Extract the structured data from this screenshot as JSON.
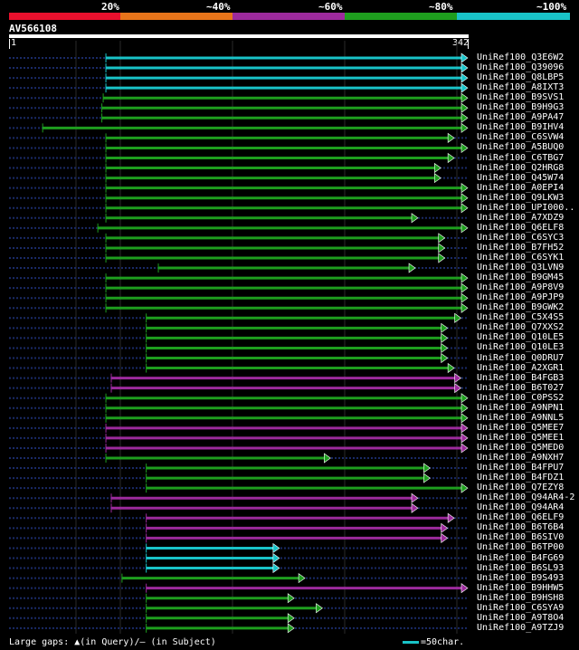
{
  "header": {
    "segments": [
      {
        "label": "20%",
        "color": "#e8102d"
      },
      {
        "label": "~40%",
        "color": "#e7741a"
      },
      {
        "label": "~60%",
        "color": "#9c2a9c"
      },
      {
        "label": "~80%",
        "color": "#1e9e1e"
      },
      {
        "label": "~100%",
        "color": "#19c3c8"
      }
    ]
  },
  "query": {
    "name": "AV566108",
    "start": "1",
    "end": "342",
    "length": 342
  },
  "colors": {
    "background": "#000000",
    "dotted_line": "#1a2a66",
    "triangle": "#ffffff"
  },
  "hits": [
    {
      "label": "UniRef100_Q3E6W2",
      "start": 73,
      "end": 342,
      "color": "#19c3c8"
    },
    {
      "label": "UniRef100_Q39096",
      "start": 73,
      "end": 342,
      "color": "#19c3c8"
    },
    {
      "label": "UniRef100_Q8LBP5",
      "start": 73,
      "end": 342,
      "color": "#19c3c8"
    },
    {
      "label": "UniRef100_A8IXT3",
      "start": 73,
      "end": 342,
      "color": "#19c3c8"
    },
    {
      "label": "UniRef100_B9SVS1",
      "start": 71,
      "end": 342,
      "color": "#1e9e1e"
    },
    {
      "label": "UniRef100_B9H9G3",
      "start": 70,
      "end": 342,
      "color": "#1e9e1e"
    },
    {
      "label": "UniRef100_A9PA47",
      "start": 70,
      "end": 342,
      "color": "#1e9e1e"
    },
    {
      "label": "UniRef100_B9IHV4",
      "start": 26,
      "end": 342,
      "color": "#1e9e1e"
    },
    {
      "label": "UniRef100_C6SVW4",
      "start": 73,
      "end": 332,
      "color": "#1e9e1e"
    },
    {
      "label": "UniRef100_A5BUQ0",
      "start": 73,
      "end": 342,
      "color": "#1e9e1e"
    },
    {
      "label": "UniRef100_C6TBG7",
      "start": 73,
      "end": 332,
      "color": "#1e9e1e"
    },
    {
      "label": "UniRef100_Q2HRG8",
      "start": 73,
      "end": 322,
      "color": "#1e9e1e"
    },
    {
      "label": "UniRef100_Q45W74",
      "start": 73,
      "end": 322,
      "color": "#1e9e1e"
    },
    {
      "label": "UniRef100_A0EPI4",
      "start": 73,
      "end": 342,
      "color": "#1e9e1e"
    },
    {
      "label": "UniRef100_Q9LKW3",
      "start": 73,
      "end": 342,
      "color": "#1e9e1e"
    },
    {
      "label": "UniRef100_UPI000..",
      "start": 73,
      "end": 342,
      "color": "#1e9e1e"
    },
    {
      "label": "UniRef100_A7XDZ9",
      "start": 73,
      "end": 305,
      "color": "#1e9e1e"
    },
    {
      "label": "UniRef100_Q6ELF8",
      "start": 67,
      "end": 342,
      "color": "#1e9e1e"
    },
    {
      "label": "UniRef100_C6SYC3",
      "start": 73,
      "end": 325,
      "color": "#1e9e1e"
    },
    {
      "label": "UniRef100_B7FH52",
      "start": 73,
      "end": 325,
      "color": "#1e9e1e"
    },
    {
      "label": "UniRef100_C6SYK1",
      "start": 73,
      "end": 325,
      "color": "#1e9e1e"
    },
    {
      "label": "UniRef100_Q3LVN9",
      "start": 112,
      "end": 303,
      "color": "#1e9e1e"
    },
    {
      "label": "UniRef100_B9GM45",
      "start": 73,
      "end": 342,
      "color": "#1e9e1e"
    },
    {
      "label": "UniRef100_A9P8V9",
      "start": 73,
      "end": 342,
      "color": "#1e9e1e"
    },
    {
      "label": "UniRef100_A9PJP9",
      "start": 73,
      "end": 342,
      "color": "#1e9e1e"
    },
    {
      "label": "UniRef100_B9GWK2",
      "start": 73,
      "end": 342,
      "color": "#1e9e1e"
    },
    {
      "label": "UniRef100_C5X4S5",
      "start": 103,
      "end": 337,
      "color": "#1e9e1e"
    },
    {
      "label": "UniRef100_Q7XXS2",
      "start": 103,
      "end": 327,
      "color": "#1e9e1e"
    },
    {
      "label": "UniRef100_Q10LE5",
      "start": 103,
      "end": 327,
      "color": "#1e9e1e"
    },
    {
      "label": "UniRef100_Q10LE3",
      "start": 103,
      "end": 327,
      "color": "#1e9e1e"
    },
    {
      "label": "UniRef100_Q0DRU7",
      "start": 103,
      "end": 327,
      "color": "#1e9e1e"
    },
    {
      "label": "UniRef100_A2XGR1",
      "start": 103,
      "end": 332,
      "color": "#1e9e1e"
    },
    {
      "label": "UniRef100_B4FGB3",
      "start": 77,
      "end": 337,
      "color": "#9c2a9c"
    },
    {
      "label": "UniRef100_B6T027",
      "start": 77,
      "end": 337,
      "color": "#9c2a9c"
    },
    {
      "label": "UniRef100_C0PSS2",
      "start": 73,
      "end": 342,
      "color": "#1e9e1e"
    },
    {
      "label": "UniRef100_A9NPN1",
      "start": 73,
      "end": 342,
      "color": "#1e9e1e"
    },
    {
      "label": "UniRef100_A9NNL5",
      "start": 73,
      "end": 342,
      "color": "#1e9e1e"
    },
    {
      "label": "UniRef100_Q5MEE7",
      "start": 73,
      "end": 342,
      "color": "#9c2a9c"
    },
    {
      "label": "UniRef100_Q5MEE1",
      "start": 73,
      "end": 342,
      "color": "#9c2a9c"
    },
    {
      "label": "UniRef100_Q5MED0",
      "start": 73,
      "end": 342,
      "color": "#9c2a9c"
    },
    {
      "label": "UniRef100_A9NXH7",
      "start": 73,
      "end": 240,
      "color": "#1e9e1e"
    },
    {
      "label": "UniRef100_B4FPU7",
      "start": 103,
      "end": 314,
      "color": "#1e9e1e"
    },
    {
      "label": "UniRef100_B4FDZ1",
      "start": 103,
      "end": 314,
      "color": "#1e9e1e"
    },
    {
      "label": "UniRef100_Q7EZY8",
      "start": 103,
      "end": 342,
      "color": "#1e9e1e"
    },
    {
      "label": "UniRef100_Q94AR4-2",
      "start": 77,
      "end": 305,
      "color": "#9c2a9c"
    },
    {
      "label": "UniRef100_Q94AR4",
      "start": 77,
      "end": 305,
      "color": "#9c2a9c"
    },
    {
      "label": "UniRef100_Q6ELF9",
      "start": 103,
      "end": 332,
      "color": "#9c2a9c"
    },
    {
      "label": "UniRef100_B6T6B4",
      "start": 103,
      "end": 327,
      "color": "#9c2a9c"
    },
    {
      "label": "UniRef100_B6SIV0",
      "start": 103,
      "end": 327,
      "color": "#9c2a9c"
    },
    {
      "label": "UniRef100_B6TP00",
      "start": 103,
      "end": 202,
      "color": "#19c3c8"
    },
    {
      "label": "UniRef100_B4FG69",
      "start": 103,
      "end": 202,
      "color": "#19c3c8"
    },
    {
      "label": "UniRef100_B6SL93",
      "start": 103,
      "end": 202,
      "color": "#19c3c8"
    },
    {
      "label": "UniRef100_B9S493",
      "start": 85,
      "end": 221,
      "color": "#1e9e1e"
    },
    {
      "label": "UniRef100_B9HHW5",
      "start": 103,
      "end": 342,
      "color": "#9c2a9c"
    },
    {
      "label": "UniRef100_B9HSH8",
      "start": 103,
      "end": 213,
      "color": "#1e9e1e"
    },
    {
      "label": "UniRef100_C6SYA9",
      "start": 103,
      "end": 234,
      "color": "#1e9e1e"
    },
    {
      "label": "UniRef100_A9T8O4",
      "start": 103,
      "end": 213,
      "color": "#1e9e1e"
    },
    {
      "label": "UniRef100_A9TZJ9",
      "start": 103,
      "end": 213,
      "color": "#1e9e1e"
    }
  ],
  "footer": {
    "legend_text": "Large gaps: ▲(in Query)/– (in Subject)",
    "scale_text": "=50char.",
    "scale_color": "#19c3c8"
  }
}
